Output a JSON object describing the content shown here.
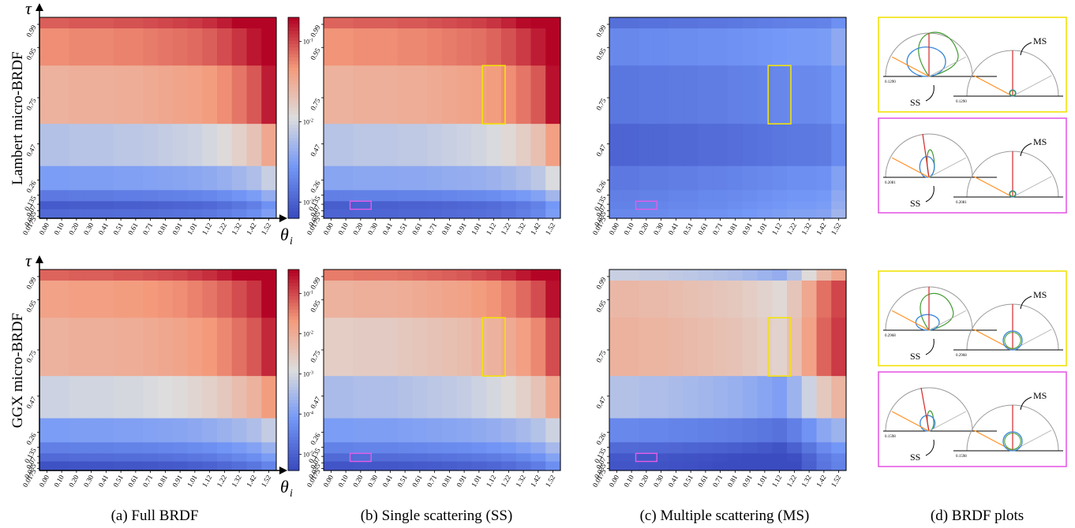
{
  "chart_data": {
    "type": "heatmap",
    "x_ticks": [
      "0.00",
      "0.10",
      "0.20",
      "0.30",
      "0.41",
      "0.51",
      "0.61",
      "0.71",
      "0.81",
      "0.91",
      "1.01",
      "1.12",
      "1.22",
      "1.32",
      "1.42",
      "1.52"
    ],
    "y_ticks": [
      "0.99",
      "0.95",
      "0.75",
      "0.47",
      "0.26",
      "0.135",
      "0.07",
      "0.035",
      "0.0175"
    ],
    "x_symbol": "θ",
    "x_symbol_sub": "i",
    "y_symbol": "τ",
    "row_labels": [
      "Lambert  micro-BRDF",
      "GGX  micro-BRDF"
    ],
    "captions": [
      "(a) Full BRDF",
      "(b) Single scattering (SS)",
      "(c) Multiple scattering (MS)",
      "(d) BRDF plots"
    ],
    "colormap": {
      "name": "coolwarm",
      "stops": [
        "#3b4cc0",
        "#7397f7",
        "#dddddd",
        "#f49a7b",
        "#b40426"
      ],
      "scale": "log"
    },
    "colorbars": [
      {
        "row": 0,
        "ticks": [
          "10^-1",
          "10^-2",
          "10^-3"
        ]
      },
      {
        "row": 1,
        "ticks": [
          "10^-1",
          "10^-2",
          "10^-3",
          "10^-4",
          "10^-5"
        ]
      }
    ],
    "highlight_colors": {
      "yellow": "#f2e20a",
      "magenta": "#e65ce6"
    },
    "panels": [
      {
        "row": 0,
        "col": 0,
        "name": "Lambert Full BRDF",
        "band_levels": [
          0.85,
          0.77,
          0.66,
          0.4,
          0.27,
          0.15,
          0.05,
          0.1
        ],
        "theta_gain": [
          0.0,
          0.0,
          0.01,
          0.01,
          0.01,
          0.02,
          0.02,
          0.03,
          0.04,
          0.05,
          0.06,
          0.08,
          0.11,
          0.15,
          0.2,
          0.3
        ]
      },
      {
        "row": 0,
        "col": 1,
        "name": "Lambert Single scattering",
        "band_levels": [
          0.84,
          0.76,
          0.66,
          0.41,
          0.3,
          0.17,
          0.06,
          0.08
        ],
        "theta_gain": [
          0.0,
          0.0,
          0.01,
          0.01,
          0.01,
          0.02,
          0.02,
          0.03,
          0.04,
          0.05,
          0.06,
          0.08,
          0.11,
          0.15,
          0.2,
          0.32
        ]
      },
      {
        "row": 0,
        "col": 2,
        "name": "Lambert Multiple scattering",
        "band_levels": [
          0.12,
          0.2,
          0.14,
          0.08,
          0.15,
          0.17,
          0.18,
          0.2
        ],
        "theta_gain": [
          0.0,
          0.0,
          0.01,
          0.01,
          0.02,
          0.02,
          0.03,
          0.03,
          0.04,
          0.05,
          0.06,
          0.07,
          0.08,
          0.08,
          0.09,
          0.15
        ]
      },
      {
        "row": 1,
        "col": 0,
        "name": "GGX Full BRDF",
        "band_levels": [
          0.84,
          0.72,
          0.66,
          0.46,
          0.27,
          0.17,
          0.1,
          0.02
        ],
        "theta_gain": [
          0.0,
          0.0,
          0.01,
          0.01,
          0.01,
          0.02,
          0.02,
          0.03,
          0.04,
          0.05,
          0.07,
          0.09,
          0.12,
          0.16,
          0.2,
          0.28
        ]
      },
      {
        "row": 1,
        "col": 1,
        "name": "GGX Single scattering",
        "band_levels": [
          0.8,
          0.66,
          0.56,
          0.38,
          0.27,
          0.18,
          0.1,
          0.03
        ],
        "theta_gain": [
          0.0,
          0.0,
          0.01,
          0.01,
          0.01,
          0.02,
          0.03,
          0.04,
          0.05,
          0.06,
          0.08,
          0.1,
          0.13,
          0.17,
          0.22,
          0.32
        ]
      },
      {
        "row": 1,
        "col": 2,
        "name": "GGX Multiple scattering",
        "band_levels": [
          0.45,
          0.64,
          0.66,
          0.4,
          0.2,
          0.1,
          0.04,
          0.03
        ],
        "theta_gain": [
          0.0,
          0.0,
          -0.01,
          -0.01,
          -0.02,
          -0.03,
          -0.04,
          -0.05,
          -0.06,
          -0.08,
          -0.1,
          -0.12,
          -0.05,
          0.06,
          0.18,
          0.25
        ]
      }
    ],
    "highlights": [
      {
        "color": "yellow",
        "theta_from": "1.12",
        "theta_to": "1.12",
        "tau_from": "0.75",
        "tau_to": "0.75",
        "panels": [
          "b",
          "c"
        ]
      },
      {
        "color": "magenta",
        "theta_from": "0.20",
        "theta_to": "0.20",
        "tau_from": "0.07",
        "tau_to": "0.07",
        "panels": [
          "b",
          "c"
        ]
      }
    ],
    "brdf_plots": [
      {
        "row": 0,
        "frame": "yellow",
        "labels": [
          "SS",
          "MS"
        ],
        "values": [
          "0.1290",
          "0.1290"
        ]
      },
      {
        "row": 0,
        "frame": "magenta",
        "labels": [
          "SS",
          "MS"
        ],
        "values": [
          "0.2081",
          "0.2081"
        ]
      },
      {
        "row": 1,
        "frame": "yellow",
        "labels": [
          "SS",
          "MS"
        ],
        "values": [
          "0.2968",
          "0.2968"
        ]
      },
      {
        "row": 1,
        "frame": "magenta",
        "labels": [
          "SS",
          "MS"
        ],
        "values": [
          "0.1598",
          "0.1598"
        ]
      }
    ]
  }
}
